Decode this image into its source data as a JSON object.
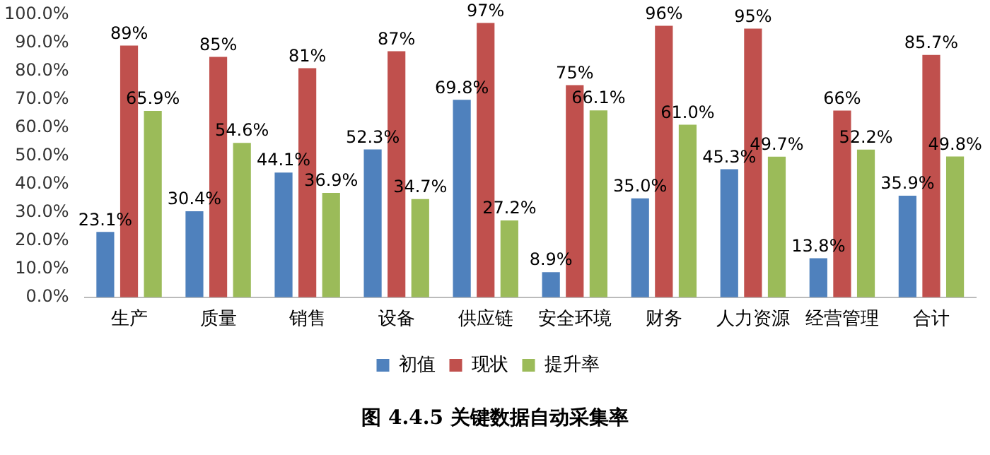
{
  "chart_data": {
    "type": "bar",
    "categories": [
      "生产",
      "质量",
      "销售",
      "设备",
      "供应链",
      "安全环境",
      "财务",
      "人力资源",
      "经营管理",
      "合计"
    ],
    "series": [
      {
        "name": "初值",
        "color": "#4f81bd",
        "values": [
          23.1,
          30.4,
          44.1,
          52.3,
          69.8,
          8.9,
          35.0,
          45.3,
          13.8,
          35.9
        ],
        "value_labels": [
          "23.1%",
          "30.4%",
          "44.1%",
          "52.3%",
          "69.8%",
          "8.9%",
          "35.0%",
          "45.3%",
          "13.8%",
          "35.9%"
        ]
      },
      {
        "name": "现状",
        "color": "#c0504d",
        "values": [
          89,
          85,
          81,
          87,
          97,
          75,
          96,
          95,
          66,
          85.7
        ],
        "value_labels": [
          "89%",
          "85%",
          "81%",
          "87%",
          "97%",
          "75%",
          "96%",
          "95%",
          "66%",
          "85.7%"
        ]
      },
      {
        "name": "提升率",
        "color": "#9bbb59",
        "values": [
          65.9,
          54.6,
          36.9,
          34.7,
          27.2,
          66.1,
          61.0,
          49.7,
          52.2,
          49.8
        ],
        "value_labels": [
          "65.9%",
          "54.6%",
          "36.9%",
          "34.7%",
          "27.2%",
          "66.1%",
          "61.0%",
          "49.7%",
          "52.2%",
          "49.8%"
        ]
      }
    ],
    "ylim": [
      0,
      100
    ],
    "yticks": [
      {
        "value": 0,
        "label": "0.0%"
      },
      {
        "value": 10,
        "label": "10.0%"
      },
      {
        "value": 20,
        "label": "20.0%"
      },
      {
        "value": 30,
        "label": "30.0%"
      },
      {
        "value": 40,
        "label": "40.0%"
      },
      {
        "value": 50,
        "label": "50.0%"
      },
      {
        "value": 60,
        "label": "60.0%"
      },
      {
        "value": 70,
        "label": "70.0%"
      },
      {
        "value": 80,
        "label": "80.0%"
      },
      {
        "value": 90,
        "label": "90.0%"
      },
      {
        "value": 100,
        "label": "100.0%"
      }
    ],
    "grid": false,
    "legend": "bottom",
    "annotations": [
      "图 4.4.5 关键数据自动采集率"
    ]
  }
}
